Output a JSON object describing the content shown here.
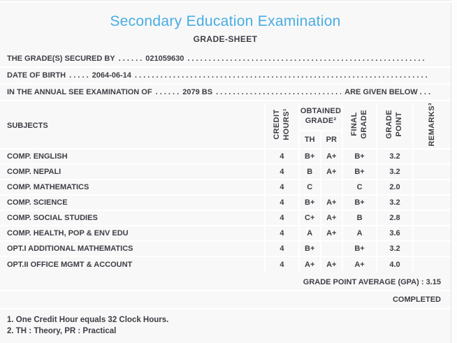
{
  "page": {
    "title": "Secondary Education Examination",
    "subtitle": "GRADE-SHEET"
  },
  "colors": {
    "accent": "#47ade4",
    "text": "#3d3d45",
    "background": "#f8f8f8",
    "separator": "#ffffff"
  },
  "info_lines": [
    {
      "label": "THE GRADE(S) SECURED BY",
      "dots_before": ". . . . . .",
      "value": "021059630",
      "filler_dots": ". . . . . . . . . . . . . . . . . . . . . . . . . . . . . . . . . . . . . . . . . . . . . . . . . . . . . . . . . . . . . . . . . . . . . . . .",
      "suffix": ""
    },
    {
      "label": "DATE OF BIRTH",
      "dots_before": ". . . . .",
      "value": "2064-06-14",
      "filler_dots": ". . . . . . . . . . . . . . . . . . . . . . . . . . . . . . . . . . . . . . . . . . . . . . . . . . . . . . . . . . . . . . . . . . . . . . . .",
      "suffix": ""
    },
    {
      "label": "IN THE ANNUAL SEE EXAMINATION OF",
      "dots_before": ". . . . . .",
      "value": "2079 BS",
      "filler_dots": ". . . . . . . . . . . . . . . . . . . . . . . . . . . . . . . . . . . . . . . . . . . . . . . . . . . . . . . . . . . . . . . . . . . . . . . .",
      "suffix": "ARE GIVEN BELOW . . ."
    }
  ],
  "table": {
    "headers": {
      "subjects": "SUBJECTS",
      "credit_hours": "CREDIT\nHOURS¹",
      "obtained_grade": "OBTAINED\nGRADE²",
      "th": "TH",
      "pr": "PR",
      "final_grade": "FINAL\nGRADE",
      "grade_point": "GRADE\nPOINT",
      "remarks": "REMARKS³"
    },
    "rows": [
      {
        "subject": "COMP. ENGLISH",
        "credit_hours": "4",
        "th": "B+",
        "pr": "A+",
        "final_grade": "B+",
        "grade_point": "3.2",
        "remarks": ""
      },
      {
        "subject": "COMP. NEPALI",
        "credit_hours": "4",
        "th": "B",
        "pr": "A+",
        "final_grade": "B+",
        "grade_point": "3.2",
        "remarks": ""
      },
      {
        "subject": "COMP. MATHEMATICS",
        "credit_hours": "4",
        "th": "C",
        "pr": "",
        "final_grade": "C",
        "grade_point": "2.0",
        "remarks": ""
      },
      {
        "subject": "COMP. SCIENCE",
        "credit_hours": "4",
        "th": "B+",
        "pr": "A+",
        "final_grade": "B+",
        "grade_point": "3.2",
        "remarks": ""
      },
      {
        "subject": "COMP. SOCIAL STUDIES",
        "credit_hours": "4",
        "th": "C+",
        "pr": "A+",
        "final_grade": "B",
        "grade_point": "2.8",
        "remarks": ""
      },
      {
        "subject": "COMP. HEALTH, POP & ENV EDU",
        "credit_hours": "4",
        "th": "A",
        "pr": "A+",
        "final_grade": "A",
        "grade_point": "3.6",
        "remarks": ""
      },
      {
        "subject": "OPT.I ADDITIONAL MATHEMATICS",
        "credit_hours": "4",
        "th": "B+",
        "pr": "",
        "final_grade": "B+",
        "grade_point": "3.2",
        "remarks": ""
      },
      {
        "subject": "OPT.II OFFICE MGMT & ACCOUNT",
        "credit_hours": "4",
        "th": "A+",
        "pr": "A+",
        "final_grade": "A+",
        "grade_point": "4.0",
        "remarks": ""
      }
    ]
  },
  "summary": {
    "gpa_label": "GRADE POINT AVERAGE (GPA) :",
    "gpa_value": "3.15",
    "status": "COMPLETED"
  },
  "footnotes": [
    "1. One Credit Hour equals 32 Clock Hours.",
    "2. TH : Theory, PR : Practical"
  ]
}
